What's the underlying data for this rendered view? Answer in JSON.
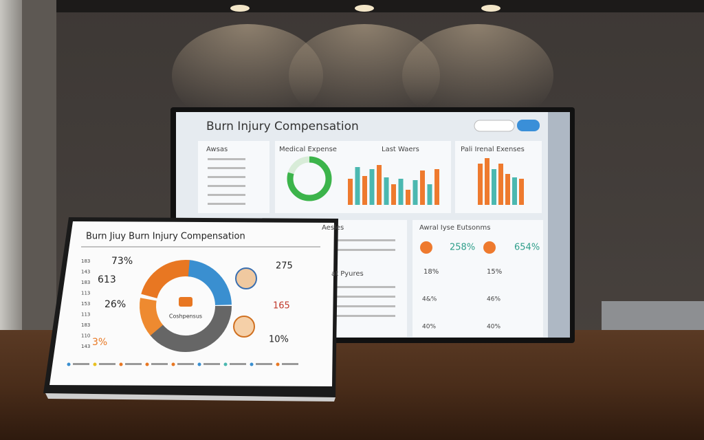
{
  "monitor": {
    "title": "Burn Injury Compensation",
    "panels": [
      "Awsas",
      "Medical Expense",
      "Last Waers",
      "Pali Irenal Exenses",
      "Aesles",
      "at Pyures",
      "Awral Iyse Eutsonms"
    ],
    "stats": [
      "258%",
      "654%",
      "18%",
      "15%",
      "4&%",
      "46%",
      "40%",
      "40%"
    ]
  },
  "tablet": {
    "title": "Burn Jiuy Burn Injury Compensation",
    "axis": [
      "183",
      "143",
      "183",
      "113",
      "153",
      "113",
      "183",
      "110",
      "143"
    ],
    "left_labels": [
      "73%",
      "613",
      "26%",
      "3%"
    ],
    "right_labels": [
      "275",
      "165",
      "10%"
    ],
    "center": "Coshpensus"
  }
}
